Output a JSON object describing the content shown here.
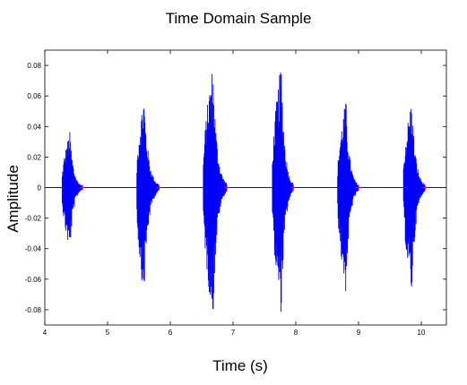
{
  "chart_data": {
    "type": "line",
    "title": "Time Domain Sample",
    "xlabel": "Time (s)",
    "ylabel": "Amplitude",
    "xlim": [
      4,
      10.4
    ],
    "ylim": [
      -0.09,
      0.09
    ],
    "x_ticks": [
      4,
      5,
      6,
      7,
      8,
      9,
      10
    ],
    "y_ticks": [
      0.08,
      0.06,
      0.04,
      0.02,
      0,
      -0.02,
      -0.04,
      -0.06,
      -0.08
    ],
    "x_tick_labels": [
      "4",
      "5",
      "6",
      "7",
      "8",
      "9",
      "10"
    ],
    "y_tick_labels": [
      "0.08",
      "0.06",
      "0.04",
      "0.02",
      "0",
      "-0.02",
      "-0.04",
      "-0.06",
      "-0.08"
    ],
    "grid": false,
    "series": [
      {
        "color": "#0000ff",
        "baseline": 0,
        "bursts": [
          {
            "start": 4.27,
            "peak_time": 4.4,
            "end": 4.6,
            "max": 0.037,
            "min": -0.043
          },
          {
            "start": 5.46,
            "peak_time": 5.58,
            "end": 5.82,
            "max": 0.062,
            "min": -0.072
          },
          {
            "start": 6.52,
            "peak_time": 6.68,
            "end": 6.9,
            "max": 0.082,
            "min": -0.087
          },
          {
            "start": 7.62,
            "peak_time": 7.77,
            "end": 7.96,
            "max": 0.082,
            "min": -0.084
          },
          {
            "start": 8.66,
            "peak_time": 8.8,
            "end": 9.0,
            "max": 0.058,
            "min": -0.07
          },
          {
            "start": 9.71,
            "peak_time": 9.85,
            "end": 10.06,
            "max": 0.059,
            "min": -0.071
          }
        ]
      }
    ],
    "markers": {
      "color": "#ff0000",
      "shape": "plus",
      "points": [
        {
          "x": 4.6,
          "y": 0
        },
        {
          "x": 5.82,
          "y": 0
        },
        {
          "x": 6.9,
          "y": 0
        },
        {
          "x": 7.96,
          "y": 0
        },
        {
          "x": 9.0,
          "y": 0
        },
        {
          "x": 10.06,
          "y": 0
        }
      ]
    }
  }
}
